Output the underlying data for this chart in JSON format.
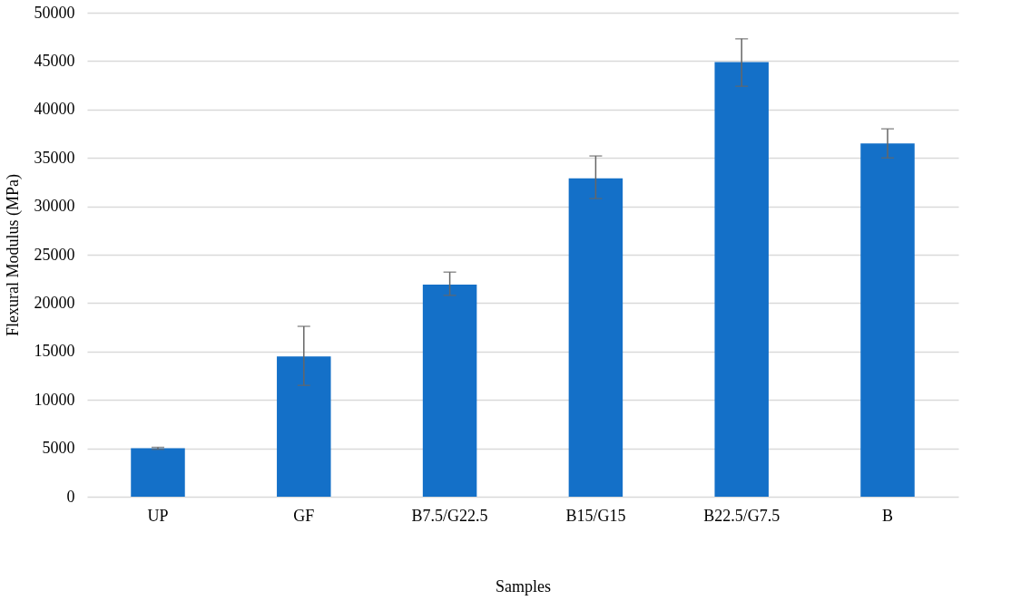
{
  "chart_data": {
    "type": "bar",
    "xlabel": "Samples",
    "ylabel": "Flexural Modulus (MPa)",
    "categories": [
      "UP",
      "GF",
      "B7.5/G22.5",
      "B15/G15",
      "B22.5/G7.5",
      "B"
    ],
    "values": [
      5000,
      14500,
      21900,
      32900,
      44900,
      36500
    ],
    "errors": [
      100,
      [
        11500,
        17600
      ],
      [
        20800,
        23200
      ],
      [
        30800,
        35200
      ],
      [
        42400,
        47300
      ],
      [
        35000,
        38000
      ]
    ],
    "color": "#1470c8",
    "ylim": [
      0,
      50000
    ],
    "yticks": [
      0,
      5000,
      10000,
      15000,
      20000,
      25000,
      30000,
      35000,
      40000,
      45000,
      50000
    ],
    "grid": "y"
  }
}
